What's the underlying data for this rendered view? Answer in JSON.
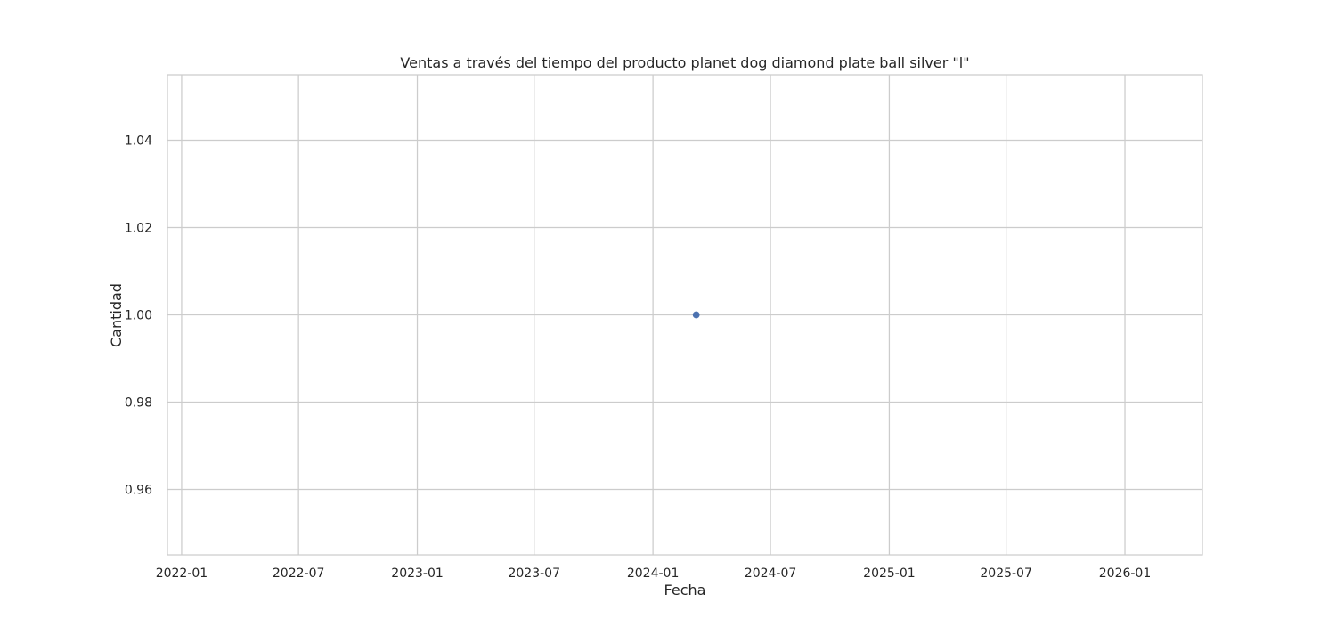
{
  "chart_data": {
    "type": "scatter",
    "title": "Ventas a través del tiempo del producto planet dog diamond plate ball silver \"l\"",
    "xlabel": "Fecha",
    "ylabel": "Cantidad",
    "x_axis_type": "date",
    "xlim": [
      "2021-12-10",
      "2026-05-01"
    ],
    "ylim": [
      0.945,
      1.055
    ],
    "x_ticks": [
      "2022-01",
      "2022-07",
      "2023-01",
      "2023-07",
      "2024-01",
      "2024-07",
      "2025-01",
      "2025-07",
      "2026-01"
    ],
    "y_ticks": [
      0.96,
      0.98,
      1.0,
      1.02,
      1.04
    ],
    "y_tick_labels": [
      "0.96",
      "0.98",
      "1.00",
      "1.02",
      "1.04"
    ],
    "grid": true,
    "series": [
      {
        "color": "#4c72b0",
        "points": [
          {
            "x": "2024-03-08",
            "y": 1.0
          }
        ]
      }
    ]
  }
}
